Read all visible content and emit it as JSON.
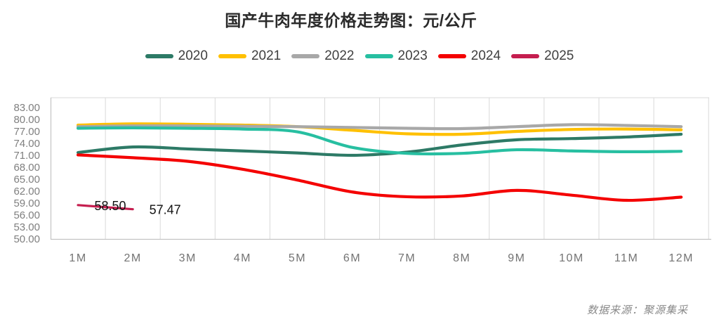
{
  "source_note": "数据来源：聚源集采",
  "chart_data": {
    "type": "line",
    "title": "国产牛肉年度价格走势图：元/公斤",
    "unit": "元/公斤",
    "categories": [
      "1M",
      "2M",
      "3M",
      "4M",
      "5M",
      "6M",
      "7M",
      "8M",
      "9M",
      "10M",
      "11M",
      "12M"
    ],
    "series": [
      {
        "name": "2020",
        "color": "#2D7A66",
        "values": [
          71.7,
          73.1,
          72.6,
          72.1,
          71.6,
          71.0,
          71.8,
          73.6,
          74.9,
          75.2,
          75.6,
          76.3
        ]
      },
      {
        "name": "2021",
        "color": "#FFC000",
        "values": [
          78.6,
          78.9,
          78.8,
          78.6,
          78.2,
          77.3,
          76.4,
          76.3,
          77.0,
          77.5,
          77.6,
          77.4
        ]
      },
      {
        "name": "2022",
        "color": "#A8A8A8",
        "values": [
          78.2,
          78.4,
          78.4,
          78.3,
          78.2,
          78.0,
          77.8,
          77.7,
          78.2,
          78.7,
          78.5,
          78.2
        ]
      },
      {
        "name": "2023",
        "color": "#27BFA1",
        "values": [
          77.8,
          77.9,
          77.8,
          77.6,
          76.9,
          73.0,
          71.5,
          71.5,
          72.4,
          72.1,
          71.9,
          72.0
        ]
      },
      {
        "name": "2024",
        "color": "#F40000",
        "values": [
          71.1,
          70.4,
          69.5,
          67.5,
          64.8,
          61.8,
          60.6,
          60.8,
          62.2,
          61.0,
          59.7,
          60.5
        ]
      },
      {
        "name": "2025",
        "color": "#C51E4F",
        "values": [
          58.5,
          57.47
        ],
        "point_labels": [
          "58.50",
          "57.47"
        ]
      }
    ],
    "ylim": [
      50,
      83
    ],
    "ytick_step": 3,
    "ytick_labels": [
      "83.00",
      "80.00",
      "77.00",
      "74.00",
      "71.00",
      "68.00",
      "65.00",
      "62.00",
      "59.00",
      "56.00",
      "53.00",
      "50.00"
    ],
    "grid": "vertical",
    "legend_position": "top",
    "grid_color": "#D9D9D9",
    "axis_color": "#C3C3C3"
  }
}
